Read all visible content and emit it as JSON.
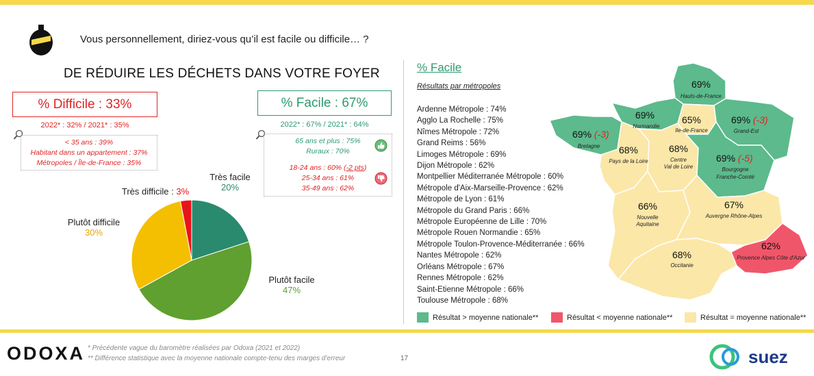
{
  "question": "Vous personnellement, diriez-vous qu’il est facile ou difficile… ?",
  "left_title": "DE RÉDUIRE LES DÉCHETS DANS VOTRE FOYER",
  "difficile": {
    "label": "% Difficile : 33%",
    "history": "2022* : 32% / 2021* : 35%",
    "details": [
      "< 35 ans : 39%",
      "Habitant dans un appartement : 37%",
      "Métropoles / Île-de-France : 35%"
    ]
  },
  "facile": {
    "label": "% Facile : 67%",
    "history": "2022* : 67% / 2021* : 64%",
    "details_up": [
      "65 ans et plus : 75%",
      "Ruraux : 70%"
    ],
    "details_down_1_prefix": "18-24 ans : 60% (",
    "details_down_1_delta": "-2 pts",
    "details_down_1_suffix": ")",
    "details_down": [
      "25-34 ans : 61%",
      "35-49 ans : 62%"
    ]
  },
  "chart_data": {
    "type": "pie",
    "slices": [
      {
        "label": "Très facile",
        "value": 20,
        "display": "20%",
        "color": "#2a8a6e"
      },
      {
        "label": "Plutôt facile",
        "value": 47,
        "display": "47%",
        "color": "#5fa030"
      },
      {
        "label": "Plutôt difficile",
        "value": 30,
        "display": "30%",
        "color": "#f4bf00"
      },
      {
        "label": "Très difficile",
        "value": 3,
        "display": "3%",
        "color": "#e8141a"
      }
    ]
  },
  "map": {
    "title": "% Facile",
    "subtitle": "Résultats par métropoles",
    "metropoles": [
      "Ardenne Métropole : 74%",
      "Agglo La Rochelle : 75%",
      "Nîmes Métropole : 72%",
      "Grand Reims : 56%",
      "Limoges Métropole : 69%",
      "Dijon Métropole : 62%",
      "Montpellier Méditerranée Métropole : 60%",
      "Métropole d'Aix-Marseille-Provence : 62%",
      "Métropole de Lyon : 61%",
      "Métropole du Grand Paris : 66%",
      "Métropole Européenne de Lille : 70%",
      "Métropole Rouen Normandie : 65%",
      "Métropole Toulon-Provence-Méditerranée : 66%",
      "Nantes Métropole : 62%",
      "Orléans Métropole : 67%",
      "Rennes Métropole : 62%",
      "Saint-Etienne Métropole : 66%",
      "Toulouse Métropole : 68%"
    ],
    "regions": {
      "hauts_de_france": {
        "name": "Hauts-de-France",
        "value": "69%"
      },
      "normandie": {
        "name": "Normandie",
        "value": "69%"
      },
      "idf": {
        "name": "Ile-de-France",
        "value": "65%"
      },
      "grand_est": {
        "name": "Grand-Est",
        "value": "69% ",
        "delta": "(-3)"
      },
      "bretagne": {
        "name": "Bretagne",
        "value": "69% ",
        "delta": "(-3)"
      },
      "pays_loire": {
        "name": "Pays de la Loire",
        "value": "68%"
      },
      "centre": {
        "name1": "Centre",
        "name2": "Val de Loire",
        "value": "68%"
      },
      "bourgogne": {
        "name1": "Bourgogne",
        "name2": "Franche-Comté",
        "value": "69% ",
        "delta": "(-5)"
      },
      "nouvelle_aquitaine": {
        "name1": "Nouvelle",
        "name2": "Aquitaine",
        "value": "66%"
      },
      "auvergne": {
        "name": "Auvergne Rhône-Alpes",
        "value": "67%"
      },
      "occitanie": {
        "name": "Occitanie",
        "value": "68%"
      },
      "paca": {
        "name": "Provence Alpes Côte d'Azur",
        "value": "62%"
      }
    },
    "colors": {
      "above": "#5cba8c",
      "below": "#f0566a",
      "equal": "#fbe7a8"
    }
  },
  "legend": {
    "above": "Résultat > moyenne nationale**",
    "below": "Résultat < moyenne nationale**",
    "equal": "Résultat = moyenne nationale**"
  },
  "footer": {
    "brand": "ODOXA",
    "note1": "* Précédente vague du baromètre réalisées par Odoxa (2021 et 2022)",
    "note2": "** Différence statistique avec la moyenne nationale compte-tenu des marges d’erreur",
    "page": "17",
    "partner": "suez"
  }
}
